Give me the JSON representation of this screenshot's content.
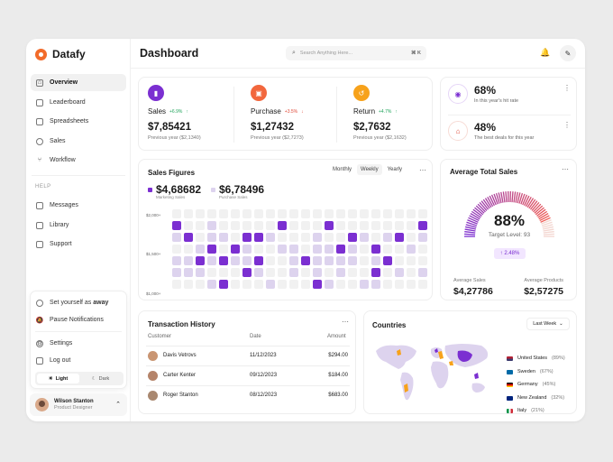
{
  "brand": {
    "name": "Datafy"
  },
  "sidebar": {
    "items": [
      {
        "label": "Overview",
        "icon": "home-icon"
      },
      {
        "label": "Leaderboard",
        "icon": "leaderboard-icon"
      },
      {
        "label": "Spreadsheets",
        "icon": "spreadsheet-icon"
      },
      {
        "label": "Sales",
        "icon": "sales-icon"
      },
      {
        "label": "Workflow",
        "icon": "workflow-icon"
      }
    ],
    "help_label": "HELP",
    "help_items": [
      {
        "label": "Messages",
        "icon": "message-icon"
      },
      {
        "label": "Library",
        "icon": "library-icon"
      },
      {
        "label": "Support",
        "icon": "support-icon"
      }
    ],
    "popup": {
      "set_away_prefix": "Set yourself as",
      "set_away_bold": "away",
      "pause": "Pause Notifications",
      "settings": "Settings",
      "logout": "Log out",
      "theme_light": "Light",
      "theme_dark": "Dark"
    },
    "user": {
      "name": "Wilson Stanton",
      "role": "Product Designer"
    }
  },
  "header": {
    "title": "Dashboard",
    "search_placeholder": "Search Anything Here...",
    "search_shortcut": "⌘ K"
  },
  "stats": [
    {
      "label": "Sales",
      "change": "+6.9%",
      "change_dir": "up",
      "value": "$7,85421",
      "prev": "Previous year ($2,1340)",
      "color": "#7b2fd1"
    },
    {
      "label": "Purchase",
      "change": "+3.5%",
      "change_dir": "down",
      "value": "$1,27432",
      "prev": "Previous year ($2,7273)",
      "color": "#f2673d"
    },
    {
      "label": "Return",
      "change": "+4.7%",
      "change_dir": "up",
      "value": "$2,7632",
      "prev": "Previous year ($2,1632)",
      "color": "#f7a21b"
    }
  ],
  "ratings": [
    {
      "value": "68%",
      "sub": "In this year's hit rate"
    },
    {
      "value": "48%",
      "sub": "The best deals for this year"
    }
  ],
  "sales_figures": {
    "title": "Sales Figures",
    "tabs": [
      "Monthly",
      "Weekly",
      "Yearly"
    ],
    "selected_tab": "Weekly",
    "legend": [
      {
        "value": "$4,68682",
        "label": "Marketing Sales",
        "color": "#7b2fd1"
      },
      {
        "value": "$6,78496",
        "label": "Purchase Sales",
        "color": "#ddd3ee"
      }
    ],
    "y_ticks": [
      "$2,000+",
      "$1,500+",
      "$1,000+"
    ]
  },
  "chart_data": {
    "type": "heatmap",
    "title": "Sales Figures",
    "rows": 7,
    "cols": 22,
    "levels": [
      "empty",
      "light",
      "dark"
    ],
    "grid": [
      "0000000000000000000000",
      "0001000001000100000000",
      "1001101110001001101101",
      "0011011001101111010010",
      "1111011100101111010000",
      "1110001100101010000101",
      "0001100010001100110000"
    ],
    "dark": [
      [
        1,
        0
      ],
      [
        2,
        1
      ],
      [
        3,
        3
      ],
      [
        4,
        2
      ],
      [
        1,
        9
      ],
      [
        1,
        13
      ],
      [
        2,
        7
      ],
      [
        3,
        14
      ],
      [
        4,
        11
      ],
      [
        3,
        5
      ],
      [
        4,
        4
      ],
      [
        5,
        6
      ],
      [
        6,
        12
      ],
      [
        6,
        4
      ],
      [
        2,
        19
      ],
      [
        1,
        21
      ],
      [
        3,
        17
      ],
      [
        4,
        7
      ],
      [
        5,
        17
      ],
      [
        4,
        18
      ],
      [
        2,
        15
      ],
      [
        2,
        6
      ]
    ],
    "x_labels": [],
    "y_labels": [
      "$2,000+",
      "$1,500+",
      "$1,000+"
    ]
  },
  "avg_sales": {
    "title": "Average Total Sales",
    "gauge_value": "88%",
    "gauge_fraction": 0.88,
    "target": "Target Level: 93",
    "badge": "2.48%",
    "left_label": "Average Sales",
    "left_value": "$4,27786",
    "right_label": "Average Products",
    "right_value": "$2,57275"
  },
  "transactions": {
    "title": "Transaction History",
    "columns": [
      "Customer",
      "Date",
      "Amount"
    ],
    "rows": [
      {
        "name": "Davis Vetrovs",
        "date": "11/12/2023",
        "amount": "$294.00"
      },
      {
        "name": "Carter Kenter",
        "date": "09/12/2023",
        "amount": "$184.00"
      },
      {
        "name": "Roger Stanton",
        "date": "08/12/2023",
        "amount": "$683.00"
      }
    ]
  },
  "countries": {
    "title": "Countries",
    "filter": "Last Week",
    "items": [
      {
        "name": "United States",
        "pct": "(89%)"
      },
      {
        "name": "Sweden",
        "pct": "(67%)"
      },
      {
        "name": "Germany",
        "pct": "(45%)"
      },
      {
        "name": "New Zealand",
        "pct": "(32%)"
      },
      {
        "name": "Italy",
        "pct": "(21%)"
      }
    ]
  }
}
